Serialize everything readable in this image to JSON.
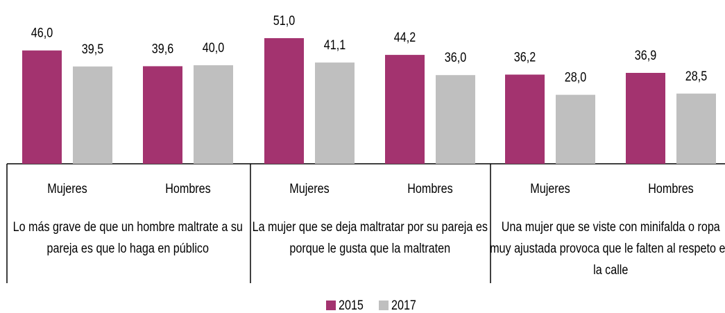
{
  "chart_data": {
    "type": "bar",
    "categories": [
      "Mujeres",
      "Hombres",
      "Mujeres",
      "Hombres",
      "Mujeres",
      "Hombres"
    ],
    "groups": [
      "Lo más grave de que un hombre maltrate a su pareja es que lo haga en público",
      "La mujer que se deja maltratar por su pareja es porque le gusta que la maltraten",
      "Una mujer que se viste con minifalda o ropa muy ajustada provoca que le falten al respeto en la calle"
    ],
    "series": [
      {
        "name": "2015",
        "color": "#a3336f",
        "values": [
          46.0,
          39.6,
          51.0,
          44.2,
          36.2,
          36.9
        ],
        "value_labels": [
          "46,0",
          "39,6",
          "51,0",
          "44,2",
          "36,2",
          "36,9"
        ]
      },
      {
        "name": "2017",
        "color": "#bfbfbf",
        "values": [
          39.5,
          40.0,
          41.1,
          36.0,
          28.0,
          28.5
        ],
        "value_labels": [
          "39,5",
          "40,0",
          "41,1",
          "36,0",
          "28,0",
          "28,5"
        ]
      }
    ],
    "ylim": [
      0,
      60
    ],
    "legend": "bottom"
  }
}
